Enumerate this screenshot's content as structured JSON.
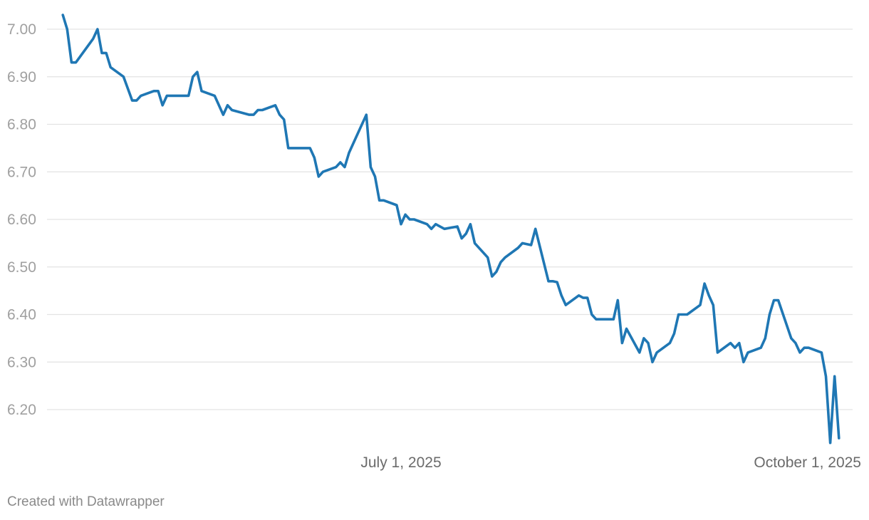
{
  "chart_data": {
    "type": "line",
    "title": "",
    "xlabel": "",
    "ylabel": "",
    "ylim": [
      6.12,
      7.03
    ],
    "y_ticks": [
      "7.00",
      "6.90",
      "6.80",
      "6.70",
      "6.60",
      "6.50",
      "6.40",
      "6.30",
      "6.20"
    ],
    "y_tick_values": [
      7.0,
      6.9,
      6.8,
      6.7,
      6.6,
      6.5,
      6.4,
      6.3,
      6.2
    ],
    "x_ticks": [
      {
        "date": "2025-07-01",
        "label": "July 1, 2025"
      },
      {
        "date": "2025-10-01",
        "label": "October 1, 2025"
      }
    ],
    "grid": "horizontal",
    "line_color": "#1f77b4",
    "series": [
      {
        "points": [
          [
            "2025-04-14",
            7.03
          ],
          [
            "2025-04-15",
            7.0
          ],
          [
            "2025-04-16",
            6.93
          ],
          [
            "2025-04-17",
            6.93
          ],
          [
            "2025-04-21",
            6.98
          ],
          [
            "2025-04-22",
            7.0
          ],
          [
            "2025-04-23",
            6.95
          ],
          [
            "2025-04-24",
            6.95
          ],
          [
            "2025-04-25",
            6.92
          ],
          [
            "2025-04-28",
            6.9
          ],
          [
            "2025-04-30",
            6.85
          ],
          [
            "2025-05-01",
            6.85
          ],
          [
            "2025-05-02",
            6.86
          ],
          [
            "2025-05-05",
            6.87
          ],
          [
            "2025-05-06",
            6.87
          ],
          [
            "2025-05-07",
            6.84
          ],
          [
            "2025-05-08",
            6.86
          ],
          [
            "2025-05-13",
            6.86
          ],
          [
            "2025-05-14",
            6.9
          ],
          [
            "2025-05-15",
            6.91
          ],
          [
            "2025-05-16",
            6.87
          ],
          [
            "2025-05-19",
            6.86
          ],
          [
            "2025-05-21",
            6.82
          ],
          [
            "2025-05-22",
            6.84
          ],
          [
            "2025-05-23",
            6.83
          ],
          [
            "2025-05-27",
            6.82
          ],
          [
            "2025-05-28",
            6.82
          ],
          [
            "2025-05-29",
            6.83
          ],
          [
            "2025-05-30",
            6.83
          ],
          [
            "2025-06-02",
            6.84
          ],
          [
            "2025-06-03",
            6.82
          ],
          [
            "2025-06-04",
            6.81
          ],
          [
            "2025-06-05",
            6.75
          ],
          [
            "2025-06-10",
            6.75
          ],
          [
            "2025-06-11",
            6.73
          ],
          [
            "2025-06-12",
            6.69
          ],
          [
            "2025-06-13",
            6.7
          ],
          [
            "2025-06-16",
            6.71
          ],
          [
            "2025-06-17",
            6.72
          ],
          [
            "2025-06-18",
            6.71
          ],
          [
            "2025-06-19",
            6.74
          ],
          [
            "2025-06-20",
            6.76
          ],
          [
            "2025-06-23",
            6.82
          ],
          [
            "2025-06-24",
            6.71
          ],
          [
            "2025-06-25",
            6.69
          ],
          [
            "2025-06-26",
            6.64
          ],
          [
            "2025-06-27",
            6.64
          ],
          [
            "2025-06-30",
            6.63
          ],
          [
            "2025-07-01",
            6.59
          ],
          [
            "2025-07-02",
            6.61
          ],
          [
            "2025-07-03",
            6.6
          ],
          [
            "2025-07-04",
            6.6
          ],
          [
            "2025-07-07",
            6.59
          ],
          [
            "2025-07-08",
            6.58
          ],
          [
            "2025-07-09",
            6.59
          ],
          [
            "2025-07-11",
            6.58
          ],
          [
            "2025-07-14",
            6.585
          ],
          [
            "2025-07-15",
            6.56
          ],
          [
            "2025-07-16",
            6.57
          ],
          [
            "2025-07-17",
            6.59
          ],
          [
            "2025-07-18",
            6.55
          ],
          [
            "2025-07-21",
            6.52
          ],
          [
            "2025-07-22",
            6.48
          ],
          [
            "2025-07-23",
            6.49
          ],
          [
            "2025-07-24",
            6.51
          ],
          [
            "2025-07-25",
            6.52
          ],
          [
            "2025-07-28",
            6.54
          ],
          [
            "2025-07-29",
            6.55
          ],
          [
            "2025-07-31",
            6.546
          ],
          [
            "2025-08-01",
            6.58
          ],
          [
            "2025-08-04",
            6.47
          ],
          [
            "2025-08-05",
            6.47
          ],
          [
            "2025-08-06",
            6.468
          ],
          [
            "2025-08-07",
            6.44
          ],
          [
            "2025-08-08",
            6.42
          ],
          [
            "2025-08-11",
            6.44
          ],
          [
            "2025-08-12",
            6.435
          ],
          [
            "2025-08-13",
            6.435
          ],
          [
            "2025-08-14",
            6.4
          ],
          [
            "2025-08-15",
            6.39
          ],
          [
            "2025-08-19",
            6.39
          ],
          [
            "2025-08-20",
            6.43
          ],
          [
            "2025-08-21",
            6.34
          ],
          [
            "2025-08-22",
            6.37
          ],
          [
            "2025-08-25",
            6.32
          ],
          [
            "2025-08-26",
            6.35
          ],
          [
            "2025-08-27",
            6.34
          ],
          [
            "2025-08-28",
            6.3
          ],
          [
            "2025-08-29",
            6.32
          ],
          [
            "2025-09-01",
            6.34
          ],
          [
            "2025-09-02",
            6.36
          ],
          [
            "2025-09-03",
            6.4
          ],
          [
            "2025-09-05",
            6.4
          ],
          [
            "2025-09-08",
            6.42
          ],
          [
            "2025-09-09",
            6.465
          ],
          [
            "2025-09-10",
            6.44
          ],
          [
            "2025-09-11",
            6.42
          ],
          [
            "2025-09-12",
            6.32
          ],
          [
            "2025-09-15",
            6.34
          ],
          [
            "2025-09-16",
            6.33
          ],
          [
            "2025-09-17",
            6.34
          ],
          [
            "2025-09-18",
            6.3
          ],
          [
            "2025-09-19",
            6.32
          ],
          [
            "2025-09-22",
            6.33
          ],
          [
            "2025-09-23",
            6.35
          ],
          [
            "2025-09-24",
            6.4
          ],
          [
            "2025-09-25",
            6.43
          ],
          [
            "2025-09-26",
            6.43
          ],
          [
            "2025-09-29",
            6.35
          ],
          [
            "2025-09-30",
            6.34
          ],
          [
            "2025-10-01",
            6.32
          ],
          [
            "2025-10-02",
            6.33
          ],
          [
            "2025-10-03",
            6.33
          ],
          [
            "2025-10-06",
            6.32
          ],
          [
            "2025-10-07",
            6.27
          ],
          [
            "2025-10-08",
            6.13
          ],
          [
            "2025-10-09",
            6.27
          ],
          [
            "2025-10-10",
            6.14
          ]
        ]
      }
    ]
  },
  "footer": {
    "credit": "Created with Datawrapper"
  }
}
